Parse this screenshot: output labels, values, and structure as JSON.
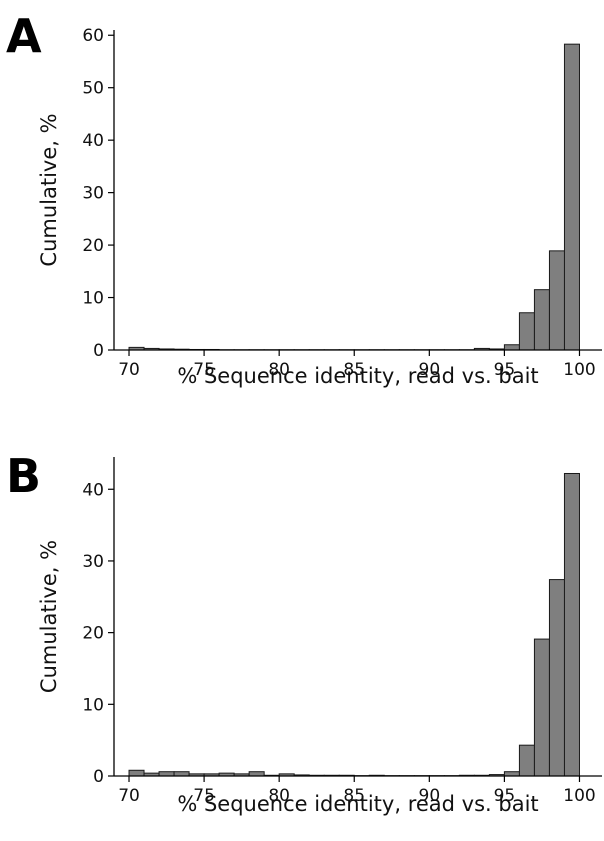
{
  "colors": {
    "bar_fill": "#7f7f7f",
    "bar_stroke": "#1a1a1a",
    "axis": "#000000"
  },
  "chart_data": [
    {
      "type": "bar",
      "panel_label": "A",
      "title": "",
      "xlabel": "% Sequence identity, read vs. bait",
      "ylabel": "Cumulative, %",
      "xlim": [
        69,
        101.5
      ],
      "ylim": [
        0,
        61
      ],
      "x_ticks": [
        70,
        75,
        80,
        85,
        90,
        95,
        100
      ],
      "y_ticks": [
        0,
        10,
        20,
        30,
        40,
        50,
        60
      ],
      "bin_width": 1,
      "bin_starts": [
        70,
        71,
        72,
        73,
        74,
        75,
        76,
        77,
        78,
        79,
        80,
        81,
        82,
        83,
        84,
        85,
        86,
        87,
        88,
        89,
        90,
        91,
        92,
        93,
        94,
        95,
        96,
        97,
        98,
        99
      ],
      "values": [
        0.5,
        0.3,
        0.2,
        0.15,
        0.1,
        0.1,
        0.05,
        0.05,
        0.05,
        0.05,
        0.05,
        0.05,
        0.05,
        0.05,
        0.05,
        0.05,
        0.05,
        0.05,
        0.05,
        0.05,
        0.05,
        0.05,
        0.05,
        0.3,
        0.2,
        1.0,
        7.1,
        11.5,
        18.9,
        58.3
      ],
      "grid": false
    },
    {
      "type": "bar",
      "panel_label": "B",
      "title": "",
      "xlabel": "% Sequence identity, read vs. bait",
      "ylabel": "Cumulative, %",
      "xlim": [
        69,
        101.5
      ],
      "ylim": [
        0,
        44.5
      ],
      "x_ticks": [
        70,
        75,
        80,
        85,
        90,
        95,
        100
      ],
      "y_ticks": [
        0,
        10,
        20,
        30,
        40
      ],
      "bin_width": 1,
      "bin_starts": [
        70,
        71,
        72,
        73,
        74,
        75,
        76,
        77,
        78,
        79,
        80,
        81,
        82,
        83,
        84,
        85,
        86,
        87,
        88,
        89,
        90,
        91,
        92,
        93,
        94,
        95,
        96,
        97,
        98,
        99
      ],
      "values": [
        0.8,
        0.4,
        0.6,
        0.6,
        0.3,
        0.3,
        0.4,
        0.3,
        0.6,
        0.1,
        0.3,
        0.15,
        0.1,
        0.1,
        0.1,
        0.05,
        0.1,
        0.05,
        0.05,
        0.05,
        0.05,
        0.05,
        0.1,
        0.1,
        0.2,
        0.6,
        4.3,
        19.1,
        27.4,
        42.2
      ],
      "grid": false
    }
  ]
}
